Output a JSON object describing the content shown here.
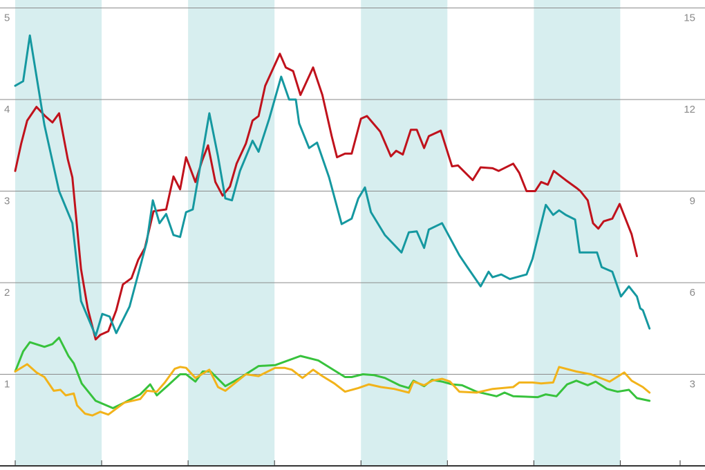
{
  "chart_data": {
    "type": "line",
    "title": "",
    "xlabel": "",
    "ylabel_left": "",
    "ylabel_right": "",
    "x_range": [
      0,
      100
    ],
    "left_axis": {
      "range": [
        0,
        5
      ],
      "ticks": [
        1,
        2,
        3,
        4,
        5
      ],
      "tick_labels": [
        "1",
        "2",
        "3",
        "4",
        "5"
      ]
    },
    "right_axis": {
      "range": [
        0,
        15
      ],
      "ticks": [
        3,
        6,
        9,
        12,
        15
      ],
      "tick_labels": [
        "3",
        "6",
        "9",
        "12",
        "15"
      ]
    },
    "grid": true,
    "background_bands": [
      [
        0,
        13
      ],
      [
        26,
        39
      ],
      [
        52,
        65
      ],
      [
        78,
        91
      ]
    ],
    "band_color": "#d7eeef",
    "series": [
      {
        "color": "#c0121c",
        "axis": "left",
        "points": [
          [
            0,
            3.22
          ],
          [
            0.9,
            3.52
          ],
          [
            1.8,
            3.77
          ],
          [
            3.2,
            3.92
          ],
          [
            4.5,
            3.82
          ],
          [
            5.6,
            3.75
          ],
          [
            6.6,
            3.85
          ],
          [
            7.9,
            3.35
          ],
          [
            8.6,
            3.15
          ],
          [
            9.9,
            2.15
          ],
          [
            10.9,
            1.72
          ],
          [
            12.1,
            1.38
          ],
          [
            12.8,
            1.43
          ],
          [
            14.0,
            1.47
          ],
          [
            15.2,
            1.7
          ],
          [
            16.2,
            1.98
          ],
          [
            17.5,
            2.05
          ],
          [
            18.5,
            2.25
          ],
          [
            19.5,
            2.38
          ],
          [
            20.8,
            2.78
          ],
          [
            21.7,
            2.79
          ],
          [
            22.7,
            2.8
          ],
          [
            23.8,
            3.16
          ],
          [
            24.8,
            3.02
          ],
          [
            25.7,
            3.37
          ],
          [
            27.1,
            3.1
          ],
          [
            28.1,
            3.33
          ],
          [
            29.0,
            3.5
          ],
          [
            30.1,
            3.1
          ],
          [
            31.2,
            2.95
          ],
          [
            32.3,
            3.05
          ],
          [
            33.3,
            3.3
          ],
          [
            34.7,
            3.52
          ],
          [
            35.7,
            3.77
          ],
          [
            36.6,
            3.82
          ],
          [
            37.6,
            4.15
          ],
          [
            39.8,
            4.5
          ],
          [
            40.7,
            4.35
          ],
          [
            41.8,
            4.31
          ],
          [
            42.9,
            4.05
          ],
          [
            44.8,
            4.35
          ],
          [
            46.2,
            4.05
          ],
          [
            47.6,
            3.6
          ],
          [
            48.4,
            3.37
          ],
          [
            49.6,
            3.41
          ],
          [
            50.6,
            3.41
          ],
          [
            52.0,
            3.79
          ],
          [
            52.9,
            3.82
          ],
          [
            54.9,
            3.65
          ],
          [
            56.5,
            3.38
          ],
          [
            57.3,
            3.44
          ],
          [
            58.3,
            3.4
          ],
          [
            59.5,
            3.67
          ],
          [
            60.4,
            3.67
          ],
          [
            61.5,
            3.47
          ],
          [
            62.2,
            3.6
          ],
          [
            64.0,
            3.66
          ],
          [
            65.7,
            3.27
          ],
          [
            66.6,
            3.28
          ],
          [
            68.8,
            3.12
          ],
          [
            70.0,
            3.26
          ],
          [
            71.8,
            3.25
          ],
          [
            72.7,
            3.22
          ],
          [
            74.9,
            3.3
          ],
          [
            75.8,
            3.2
          ],
          [
            76.9,
            3.0
          ],
          [
            78.2,
            3.0
          ],
          [
            79.1,
            3.1
          ],
          [
            80.1,
            3.07
          ],
          [
            81.0,
            3.22
          ],
          [
            82.8,
            3.12
          ],
          [
            84.5,
            3.03
          ],
          [
            85.0,
            3.0
          ],
          [
            86.1,
            2.9
          ],
          [
            86.9,
            2.65
          ],
          [
            87.7,
            2.59
          ],
          [
            88.5,
            2.67
          ],
          [
            89.8,
            2.7
          ],
          [
            90.9,
            2.86
          ],
          [
            92.7,
            2.53
          ],
          [
            93.5,
            2.29
          ]
        ]
      },
      {
        "color": "#1598a0",
        "axis": "left",
        "points": [
          [
            0,
            4.15
          ],
          [
            1.2,
            4.2
          ],
          [
            2.2,
            4.7
          ],
          [
            4.4,
            3.72
          ],
          [
            6.6,
            3.0
          ],
          [
            8.6,
            2.65
          ],
          [
            9.9,
            1.8
          ],
          [
            12.1,
            1.42
          ],
          [
            13.1,
            1.66
          ],
          [
            14.2,
            1.63
          ],
          [
            15.2,
            1.45
          ],
          [
            17.2,
            1.74
          ],
          [
            19.8,
            2.45
          ],
          [
            20.7,
            2.9
          ],
          [
            21.7,
            2.65
          ],
          [
            22.7,
            2.75
          ],
          [
            23.8,
            2.52
          ],
          [
            24.8,
            2.5
          ],
          [
            25.7,
            2.77
          ],
          [
            26.7,
            2.8
          ],
          [
            29.2,
            3.85
          ],
          [
            30.5,
            3.38
          ],
          [
            31.6,
            2.92
          ],
          [
            32.6,
            2.9
          ],
          [
            33.8,
            3.22
          ],
          [
            35.7,
            3.55
          ],
          [
            36.6,
            3.43
          ],
          [
            38.2,
            3.79
          ],
          [
            40.0,
            4.25
          ],
          [
            41.2,
            4.0
          ],
          [
            42.2,
            4.0
          ],
          [
            42.7,
            3.74
          ],
          [
            44.2,
            3.47
          ],
          [
            45.4,
            3.53
          ],
          [
            47.2,
            3.15
          ],
          [
            49.1,
            2.64
          ],
          [
            50.6,
            2.7
          ],
          [
            51.6,
            2.92
          ],
          [
            52.6,
            3.04
          ],
          [
            53.5,
            2.77
          ],
          [
            55.6,
            2.52
          ],
          [
            58.1,
            2.33
          ],
          [
            59.2,
            2.55
          ],
          [
            60.4,
            2.56
          ],
          [
            61.5,
            2.38
          ],
          [
            62.2,
            2.58
          ],
          [
            64.2,
            2.65
          ],
          [
            66.8,
            2.3
          ],
          [
            68.0,
            2.17
          ],
          [
            70.0,
            1.96
          ],
          [
            71.2,
            2.12
          ],
          [
            71.8,
            2.06
          ],
          [
            73.1,
            2.09
          ],
          [
            74.4,
            2.04
          ],
          [
            76.9,
            2.09
          ],
          [
            77.8,
            2.26
          ],
          [
            79.8,
            2.85
          ],
          [
            80.9,
            2.74
          ],
          [
            81.8,
            2.79
          ],
          [
            82.8,
            2.74
          ],
          [
            84.2,
            2.69
          ],
          [
            84.9,
            2.33
          ],
          [
            86.1,
            2.33
          ],
          [
            87.5,
            2.33
          ],
          [
            88.2,
            2.17
          ],
          [
            89.8,
            2.12
          ],
          [
            91.1,
            1.85
          ],
          [
            92.3,
            1.96
          ],
          [
            93.5,
            1.85
          ],
          [
            94.0,
            1.72
          ],
          [
            94.4,
            1.7
          ],
          [
            95.4,
            1.5
          ]
        ]
      },
      {
        "color": "#37c23c",
        "axis": "left",
        "points": [
          [
            0,
            1.03
          ],
          [
            1.2,
            1.25
          ],
          [
            2.2,
            1.35
          ],
          [
            4.4,
            1.3
          ],
          [
            5.6,
            1.33
          ],
          [
            6.6,
            1.4
          ],
          [
            8.0,
            1.2
          ],
          [
            8.8,
            1.12
          ],
          [
            10.0,
            0.9
          ],
          [
            12.1,
            0.71
          ],
          [
            14.7,
            0.63
          ],
          [
            16.4,
            0.69
          ],
          [
            18.8,
            0.78
          ],
          [
            20.3,
            0.89
          ],
          [
            21.3,
            0.77
          ],
          [
            23.0,
            0.88
          ],
          [
            24.8,
            1.0
          ],
          [
            25.7,
            1.0
          ],
          [
            27.1,
            0.92
          ],
          [
            28.2,
            1.03
          ],
          [
            29.4,
            1.03
          ],
          [
            31.6,
            0.87
          ],
          [
            33.8,
            0.96
          ],
          [
            36.6,
            1.09
          ],
          [
            39.1,
            1.1
          ],
          [
            42.9,
            1.2
          ],
          [
            45.6,
            1.15
          ],
          [
            49.6,
            0.97
          ],
          [
            50.6,
            0.97
          ],
          [
            52.3,
            1.0
          ],
          [
            54.0,
            0.99
          ],
          [
            55.6,
            0.96
          ],
          [
            57.8,
            0.88
          ],
          [
            59.2,
            0.85
          ],
          [
            59.9,
            0.93
          ],
          [
            61.5,
            0.87
          ],
          [
            62.7,
            0.94
          ],
          [
            64.2,
            0.92
          ],
          [
            65.7,
            0.89
          ],
          [
            67.2,
            0.88
          ],
          [
            69.4,
            0.81
          ],
          [
            72.4,
            0.76
          ],
          [
            73.6,
            0.8
          ],
          [
            74.9,
            0.76
          ],
          [
            78.6,
            0.75
          ],
          [
            79.8,
            0.78
          ],
          [
            81.4,
            0.76
          ],
          [
            83.0,
            0.89
          ],
          [
            84.4,
            0.93
          ],
          [
            86.1,
            0.88
          ],
          [
            87.3,
            0.92
          ],
          [
            89.0,
            0.84
          ],
          [
            90.6,
            0.81
          ],
          [
            92.3,
            0.83
          ],
          [
            93.5,
            0.74
          ],
          [
            95.4,
            0.71
          ]
        ]
      },
      {
        "color": "#f2b31a",
        "axis": "left",
        "points": [
          [
            0,
            1.03
          ],
          [
            1.8,
            1.11
          ],
          [
            3.2,
            1.02
          ],
          [
            4.4,
            0.97
          ],
          [
            5.8,
            0.82
          ],
          [
            6.8,
            0.83
          ],
          [
            7.6,
            0.77
          ],
          [
            8.8,
            0.79
          ],
          [
            9.3,
            0.66
          ],
          [
            10.5,
            0.57
          ],
          [
            11.6,
            0.55
          ],
          [
            12.8,
            0.59
          ],
          [
            14.0,
            0.56
          ],
          [
            16.4,
            0.69
          ],
          [
            18.8,
            0.73
          ],
          [
            19.8,
            0.82
          ],
          [
            21.3,
            0.81
          ],
          [
            22.5,
            0.91
          ],
          [
            24.0,
            1.06
          ],
          [
            24.8,
            1.08
          ],
          [
            25.7,
            1.07
          ],
          [
            27.1,
            0.96
          ],
          [
            29.2,
            1.05
          ],
          [
            30.5,
            0.86
          ],
          [
            31.6,
            0.82
          ],
          [
            34.7,
            1.0
          ],
          [
            36.6,
            0.98
          ],
          [
            39.1,
            1.07
          ],
          [
            40.5,
            1.07
          ],
          [
            41.6,
            1.05
          ],
          [
            43.2,
            0.96
          ],
          [
            44.8,
            1.05
          ],
          [
            46.2,
            0.98
          ],
          [
            48.0,
            0.9
          ],
          [
            49.6,
            0.81
          ],
          [
            51.6,
            0.85
          ],
          [
            53.2,
            0.89
          ],
          [
            55.0,
            0.86
          ],
          [
            57.0,
            0.84
          ],
          [
            59.2,
            0.8
          ],
          [
            59.9,
            0.92
          ],
          [
            61.5,
            0.88
          ],
          [
            62.7,
            0.93
          ],
          [
            64.2,
            0.95
          ],
          [
            65.4,
            0.92
          ],
          [
            66.8,
            0.81
          ],
          [
            69.4,
            0.8
          ],
          [
            71.8,
            0.84
          ],
          [
            74.9,
            0.86
          ],
          [
            75.8,
            0.91
          ],
          [
            77.8,
            0.91
          ],
          [
            79.1,
            0.9
          ],
          [
            80.9,
            0.91
          ],
          [
            81.8,
            1.08
          ],
          [
            84.4,
            1.03
          ],
          [
            86.6,
            1.0
          ],
          [
            89.4,
            0.92
          ],
          [
            91.6,
            1.02
          ],
          [
            92.7,
            0.93
          ],
          [
            94.4,
            0.86
          ],
          [
            95.4,
            0.8
          ]
        ]
      }
    ]
  }
}
